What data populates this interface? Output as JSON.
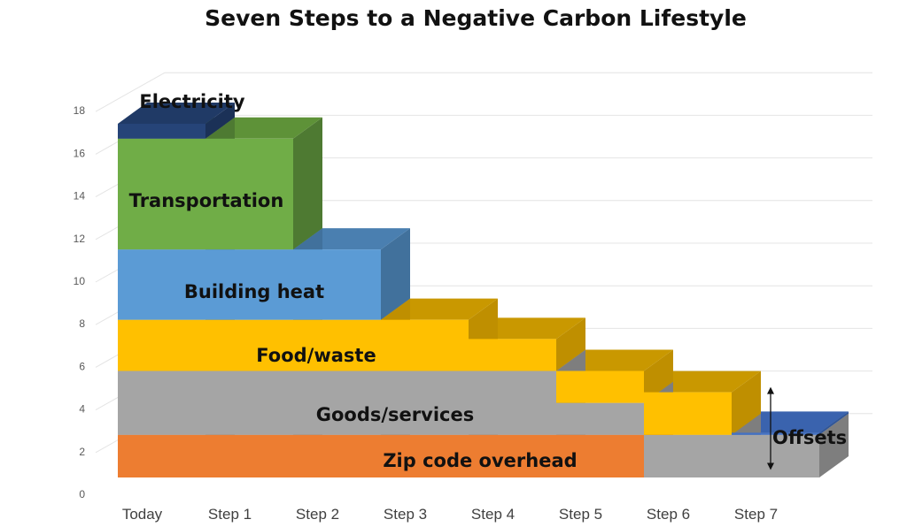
{
  "chart_data": {
    "type": "bar",
    "stacked": true,
    "three_d": true,
    "title": "Seven Steps to a Negative Carbon Lifestyle",
    "categories": [
      "Today",
      "Step 1",
      "Step 2",
      "Step 3",
      "Step 4",
      "Step 5",
      "Step 6",
      "Step 7"
    ],
    "ylim": [
      0,
      18
    ],
    "yticks": [
      0,
      2,
      4,
      6,
      8,
      10,
      12,
      14,
      16,
      18
    ],
    "grid": true,
    "series": [
      {
        "name": "Zip code overhead",
        "color": "#ED7D31",
        "side_color": "#B85F22",
        "top_color": "#C96A2A",
        "values": [
          2,
          2,
          2,
          2,
          2,
          2,
          0,
          0
        ]
      },
      {
        "name": "Goods/services",
        "color": "#A5A5A5",
        "side_color": "#7E7E7E",
        "top_color": "#8C8C8C",
        "values": [
          3,
          3,
          3,
          3,
          3,
          1.5,
          2,
          2
        ]
      },
      {
        "name": "Food/waste",
        "color": "#FFC000",
        "side_color": "#BF8F00",
        "top_color": "#C99800",
        "values": [
          2.4,
          2.4,
          2.4,
          2.4,
          1.5,
          1.5,
          2,
          0
        ]
      },
      {
        "name": "Building heat",
        "color": "#5B9BD5",
        "side_color": "#41719C",
        "top_color": "#4A7FB0",
        "values": [
          3.3,
          3.3,
          3.3,
          0,
          0,
          0,
          0,
          0
        ]
      },
      {
        "name": "Transportation",
        "color": "#70AD47",
        "side_color": "#4E7A32",
        "top_color": "#5E9238",
        "values": [
          5.2,
          5.2,
          0,
          0,
          0,
          0,
          0,
          0
        ]
      },
      {
        "name": "Electricity",
        "color": "#264478",
        "side_color": "#1B3157",
        "top_color": "#203A66",
        "values": [
          0.7,
          0,
          0,
          0,
          0,
          0,
          0,
          0
        ]
      },
      {
        "name": "Offsets",
        "color": "#4472C4",
        "side_color": "#2F5597",
        "top_color": "#3A63AE",
        "values": [
          0,
          0,
          0,
          0,
          0,
          0,
          0,
          0.1
        ]
      }
    ],
    "annotations": [
      "Electricity",
      "Transportation",
      "Building heat",
      "Food/waste",
      "Goods/services",
      "Zip code overhead",
      "Offsets"
    ]
  }
}
